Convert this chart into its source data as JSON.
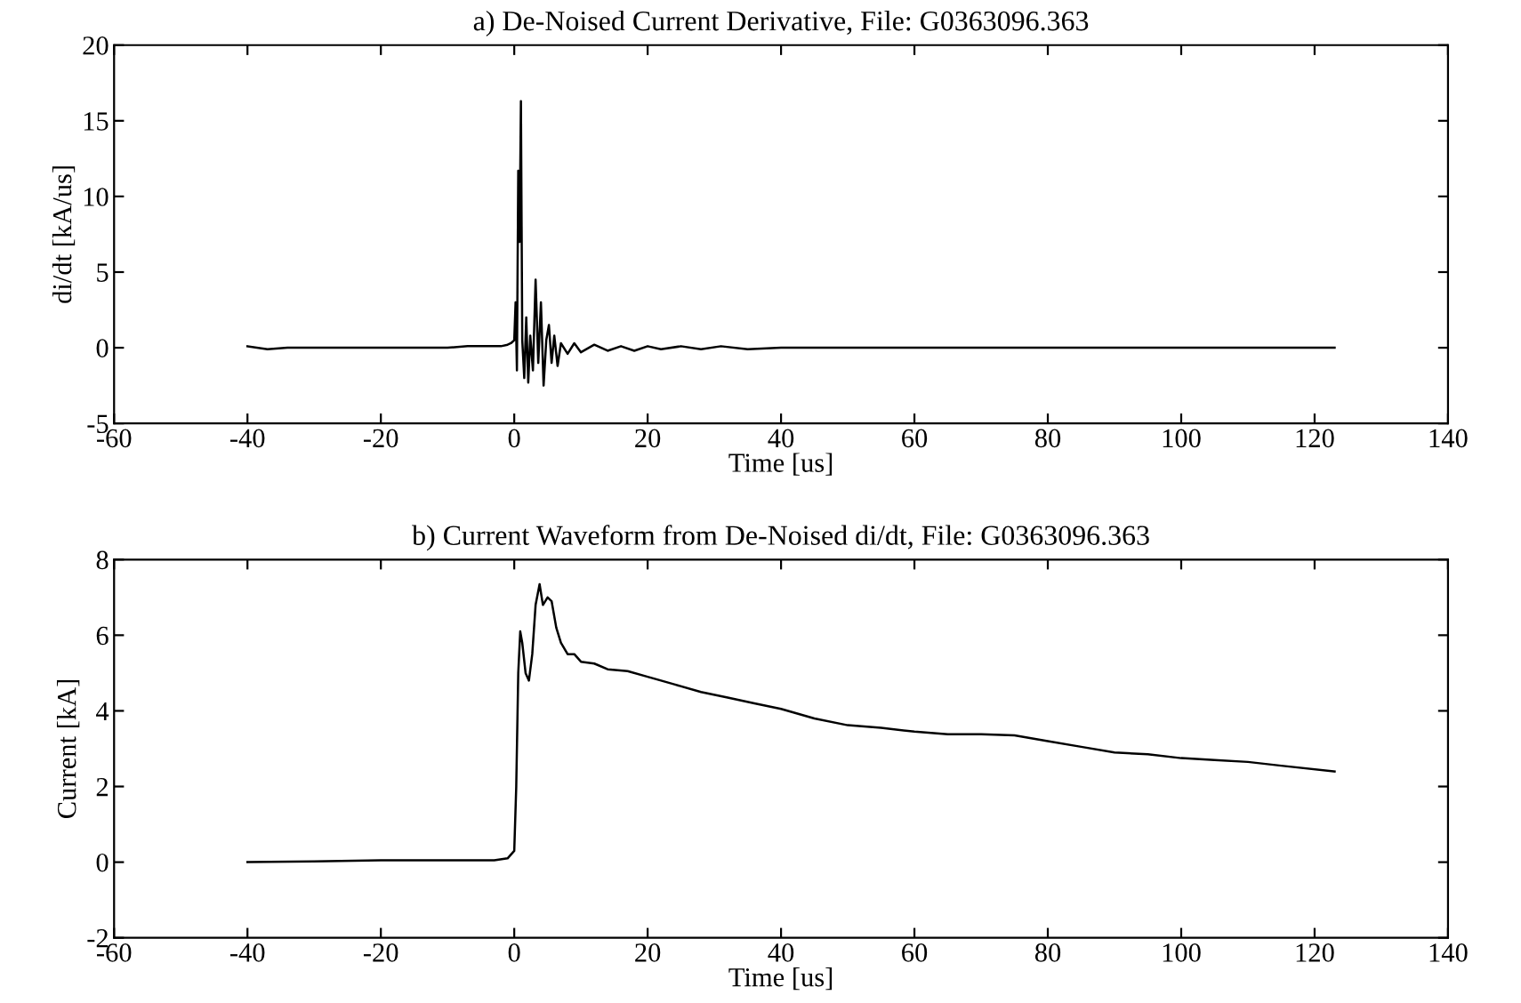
{
  "chart_data": [
    {
      "type": "line",
      "title": "a) De-Noised Current Derivative, File: G0363096.363",
      "xlabel": "Time [us]",
      "ylabel": "di/dt [kA/us]",
      "x": [
        -40,
        -37,
        -34,
        -31,
        -28,
        -25,
        -22,
        -19,
        -16,
        -13,
        -10,
        -7,
        -4,
        -2,
        -1,
        -0.5,
        0,
        0.2,
        0.4,
        0.6,
        0.8,
        1.0,
        1.2,
        1.5,
        1.8,
        2.1,
        2.4,
        2.8,
        3.2,
        3.6,
        4.0,
        4.4,
        4.8,
        5.2,
        5.6,
        6.0,
        6.5,
        7,
        8,
        9,
        10,
        12,
        14,
        16,
        18,
        20,
        22,
        25,
        28,
        31,
        35,
        40,
        50,
        60,
        70,
        80,
        90,
        100,
        110,
        123
      ],
      "series": [
        {
          "color": "#000000",
          "values": [
            0.1,
            -0.1,
            0.0,
            0.0,
            0.0,
            0.0,
            0.0,
            0.0,
            0.0,
            0.0,
            0.0,
            0.1,
            0.1,
            0.1,
            0.2,
            0.3,
            0.5,
            3,
            -1.5,
            11.7,
            7,
            16.3,
            0.5,
            -2,
            2,
            -2.3,
            0.8,
            -1.5,
            4.5,
            -1,
            3,
            -2.5,
            0.5,
            1.5,
            -1,
            0.8,
            -1.2,
            0.3,
            -0.4,
            0.3,
            -0.3,
            0.2,
            -0.2,
            0.1,
            -0.2,
            0.1,
            -0.1,
            0.1,
            -0.1,
            0.1,
            -0.1,
            0.0,
            0.0,
            0.0,
            0.0,
            0.0,
            0.0,
            0.0,
            0.0,
            0.0
          ]
        }
      ],
      "xlim": [
        -60,
        140
      ],
      "xticks": [
        -60,
        -40,
        -20,
        0,
        20,
        40,
        60,
        80,
        100,
        120,
        140
      ],
      "ylim": [
        -5,
        20
      ],
      "yticks": [
        -5,
        0,
        5,
        10,
        15,
        20
      ],
      "grid": false,
      "marker": "none",
      "line_style": "solid"
    },
    {
      "type": "line",
      "title": "b) Current Waveform from De-Noised di/dt, File: G0363096.363",
      "xlabel": "Time [us]",
      "ylabel": "Current [kA]",
      "x": [
        -40,
        -30,
        -20,
        -10,
        -3,
        -1,
        0,
        0.3,
        0.6,
        0.9,
        1.2,
        1.7,
        2.2,
        2.7,
        3.2,
        3.8,
        4.3,
        5.0,
        5.6,
        6.3,
        7,
        8,
        9,
        10,
        12,
        14,
        17,
        20,
        24,
        28,
        32,
        36,
        40,
        45,
        50,
        55,
        60,
        65,
        70,
        75,
        80,
        85,
        90,
        95,
        100,
        105,
        110,
        115,
        123
      ],
      "series": [
        {
          "color": "#000000",
          "values": [
            0,
            0.02,
            0.05,
            0.05,
            0.05,
            0.1,
            0.3,
            2,
            5,
            6.1,
            5.8,
            5.0,
            4.8,
            5.5,
            6.8,
            7.35,
            6.8,
            7.0,
            6.9,
            6.2,
            5.8,
            5.5,
            5.5,
            5.3,
            5.25,
            5.1,
            5.05,
            4.9,
            4.7,
            4.5,
            4.35,
            4.2,
            4.05,
            3.8,
            3.62,
            3.55,
            3.45,
            3.38,
            3.38,
            3.35,
            3.2,
            3.05,
            2.9,
            2.85,
            2.75,
            2.7,
            2.65,
            2.55,
            2.4
          ]
        }
      ],
      "xlim": [
        -60,
        140
      ],
      "xticks": [
        -60,
        -40,
        -20,
        0,
        20,
        40,
        60,
        80,
        100,
        120,
        140
      ],
      "ylim": [
        -2,
        8
      ],
      "yticks": [
        -2,
        0,
        2,
        4,
        6,
        8
      ],
      "grid": false,
      "marker": "none",
      "line_style": "solid"
    }
  ]
}
